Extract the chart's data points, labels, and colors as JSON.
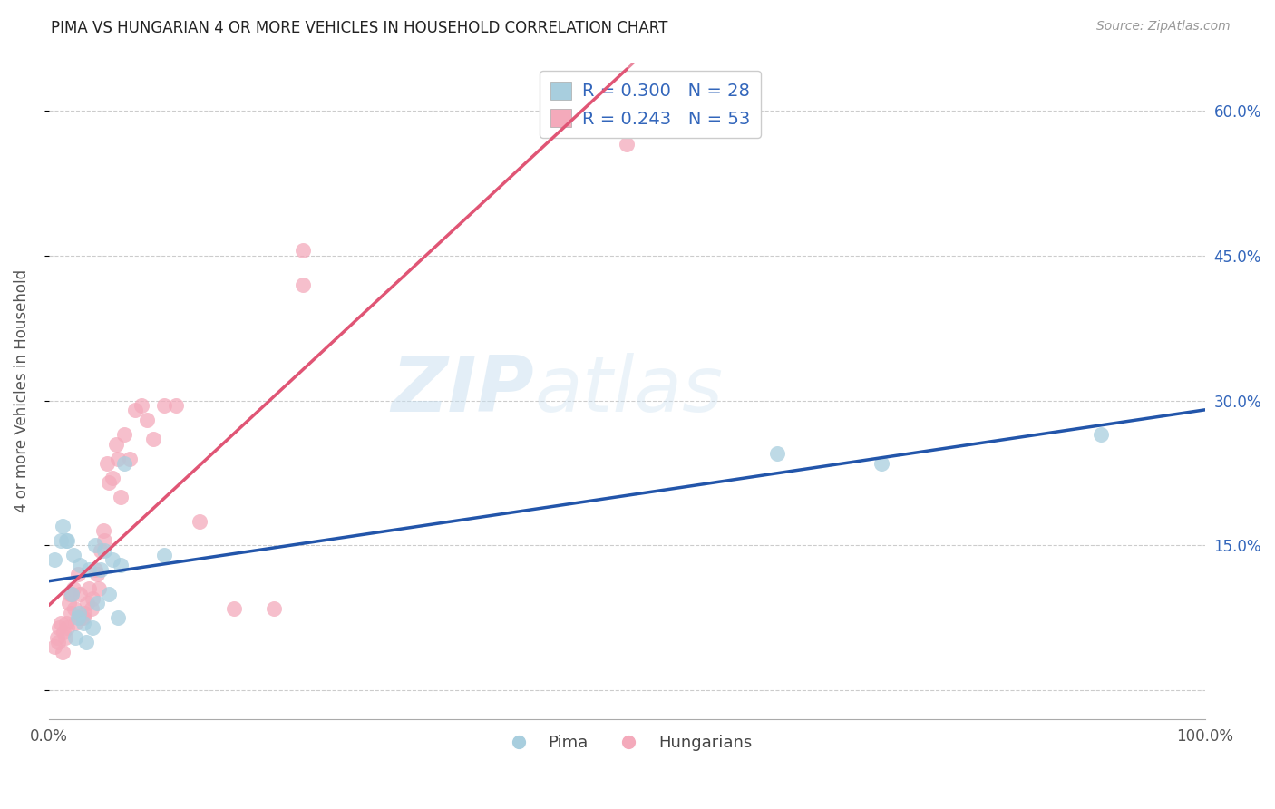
{
  "title": "PIMA VS HUNGARIAN 4 OR MORE VEHICLES IN HOUSEHOLD CORRELATION CHART",
  "source": "Source: ZipAtlas.com",
  "ylabel": "4 or more Vehicles in Household",
  "xlim": [
    0.0,
    1.0
  ],
  "ylim": [
    -0.03,
    0.65
  ],
  "xticks": [
    0.0,
    0.25,
    0.5,
    0.75,
    1.0
  ],
  "xtick_labels": [
    "0.0%",
    "",
    "",
    "",
    "100.0%"
  ],
  "yticks": [
    0.0,
    0.15,
    0.3,
    0.45,
    0.6
  ],
  "ytick_labels_right": [
    "",
    "15.0%",
    "30.0%",
    "45.0%",
    "60.0%"
  ],
  "pima_color": "#A8CEDE",
  "hungarian_color": "#F4AABB",
  "pima_line_color": "#2255AA",
  "hungarian_line_color": "#E05575",
  "pima_R": 0.3,
  "pima_N": 28,
  "hungarian_R": 0.243,
  "hungarian_N": 53,
  "watermark": "ZIPatlas",
  "pima_x": [
    0.005,
    0.01,
    0.012,
    0.015,
    0.016,
    0.02,
    0.021,
    0.023,
    0.025,
    0.026,
    0.027,
    0.03,
    0.032,
    0.035,
    0.038,
    0.04,
    0.042,
    0.045,
    0.048,
    0.052,
    0.055,
    0.06,
    0.062,
    0.065,
    0.1,
    0.63,
    0.72,
    0.91
  ],
  "pima_y": [
    0.135,
    0.155,
    0.17,
    0.155,
    0.155,
    0.1,
    0.14,
    0.055,
    0.075,
    0.08,
    0.13,
    0.07,
    0.05,
    0.125,
    0.065,
    0.15,
    0.09,
    0.125,
    0.145,
    0.1,
    0.135,
    0.075,
    0.13,
    0.235,
    0.14,
    0.245,
    0.235,
    0.265
  ],
  "hungarian_x": [
    0.005,
    0.007,
    0.008,
    0.009,
    0.01,
    0.012,
    0.013,
    0.014,
    0.015,
    0.016,
    0.017,
    0.018,
    0.019,
    0.02,
    0.021,
    0.022,
    0.023,
    0.025,
    0.026,
    0.027,
    0.028,
    0.03,
    0.031,
    0.033,
    0.035,
    0.037,
    0.038,
    0.04,
    0.042,
    0.043,
    0.045,
    0.047,
    0.048,
    0.05,
    0.052,
    0.055,
    0.058,
    0.06,
    0.062,
    0.065,
    0.07,
    0.075,
    0.08,
    0.085,
    0.09,
    0.1,
    0.11,
    0.13,
    0.16,
    0.195,
    0.22,
    0.22,
    0.5
  ],
  "hungarian_y": [
    0.045,
    0.055,
    0.05,
    0.065,
    0.07,
    0.04,
    0.06,
    0.055,
    0.07,
    0.065,
    0.09,
    0.1,
    0.08,
    0.1,
    0.105,
    0.085,
    0.07,
    0.12,
    0.075,
    0.1,
    0.075,
    0.075,
    0.08,
    0.09,
    0.105,
    0.085,
    0.095,
    0.125,
    0.12,
    0.105,
    0.145,
    0.165,
    0.155,
    0.235,
    0.215,
    0.22,
    0.255,
    0.24,
    0.2,
    0.265,
    0.24,
    0.29,
    0.295,
    0.28,
    0.26,
    0.295,
    0.295,
    0.175,
    0.085,
    0.085,
    0.42,
    0.455,
    0.565
  ]
}
